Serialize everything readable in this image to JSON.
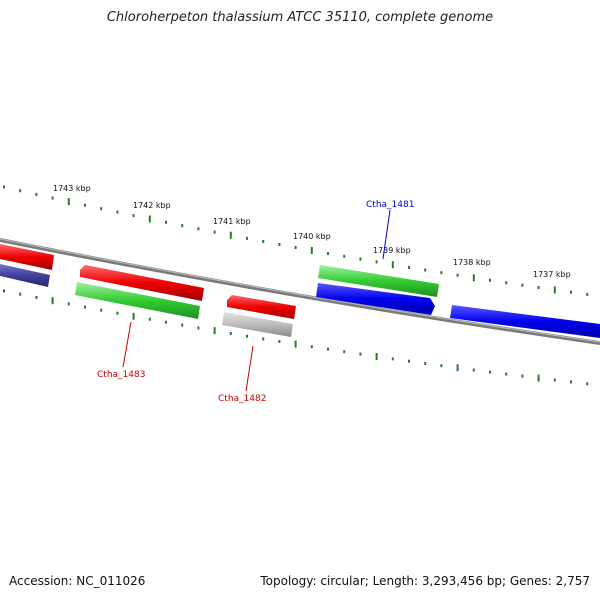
{
  "title": "Chloroherpeton thalassium ATCC 35110, complete genome",
  "footer": {
    "accession": "Accession: NC_011026",
    "summary": "Topology: circular; Length: 3,293,456 bp; Genes: 2,757"
  },
  "scale_labels": [
    "1743 kbp",
    "1742 kbp",
    "1741 kbp",
    "1740 kbp",
    "1739 kbp",
    "1738 kbp",
    "1737 kbp"
  ],
  "gene_labels": [
    {
      "text": "Ctha_1481",
      "color": "#0000cc"
    },
    {
      "text": "Ctha_1483",
      "color": "#cc0000"
    },
    {
      "text": "Ctha_1482",
      "color": "#cc0000"
    }
  ],
  "colors": {
    "tick": "#2a7a2a",
    "backbone": "#808080",
    "red": "#e60000",
    "green": "#33cc33",
    "blue": "#0000ee",
    "grey": "#b8b8b8",
    "navy": "#3a3a99"
  }
}
